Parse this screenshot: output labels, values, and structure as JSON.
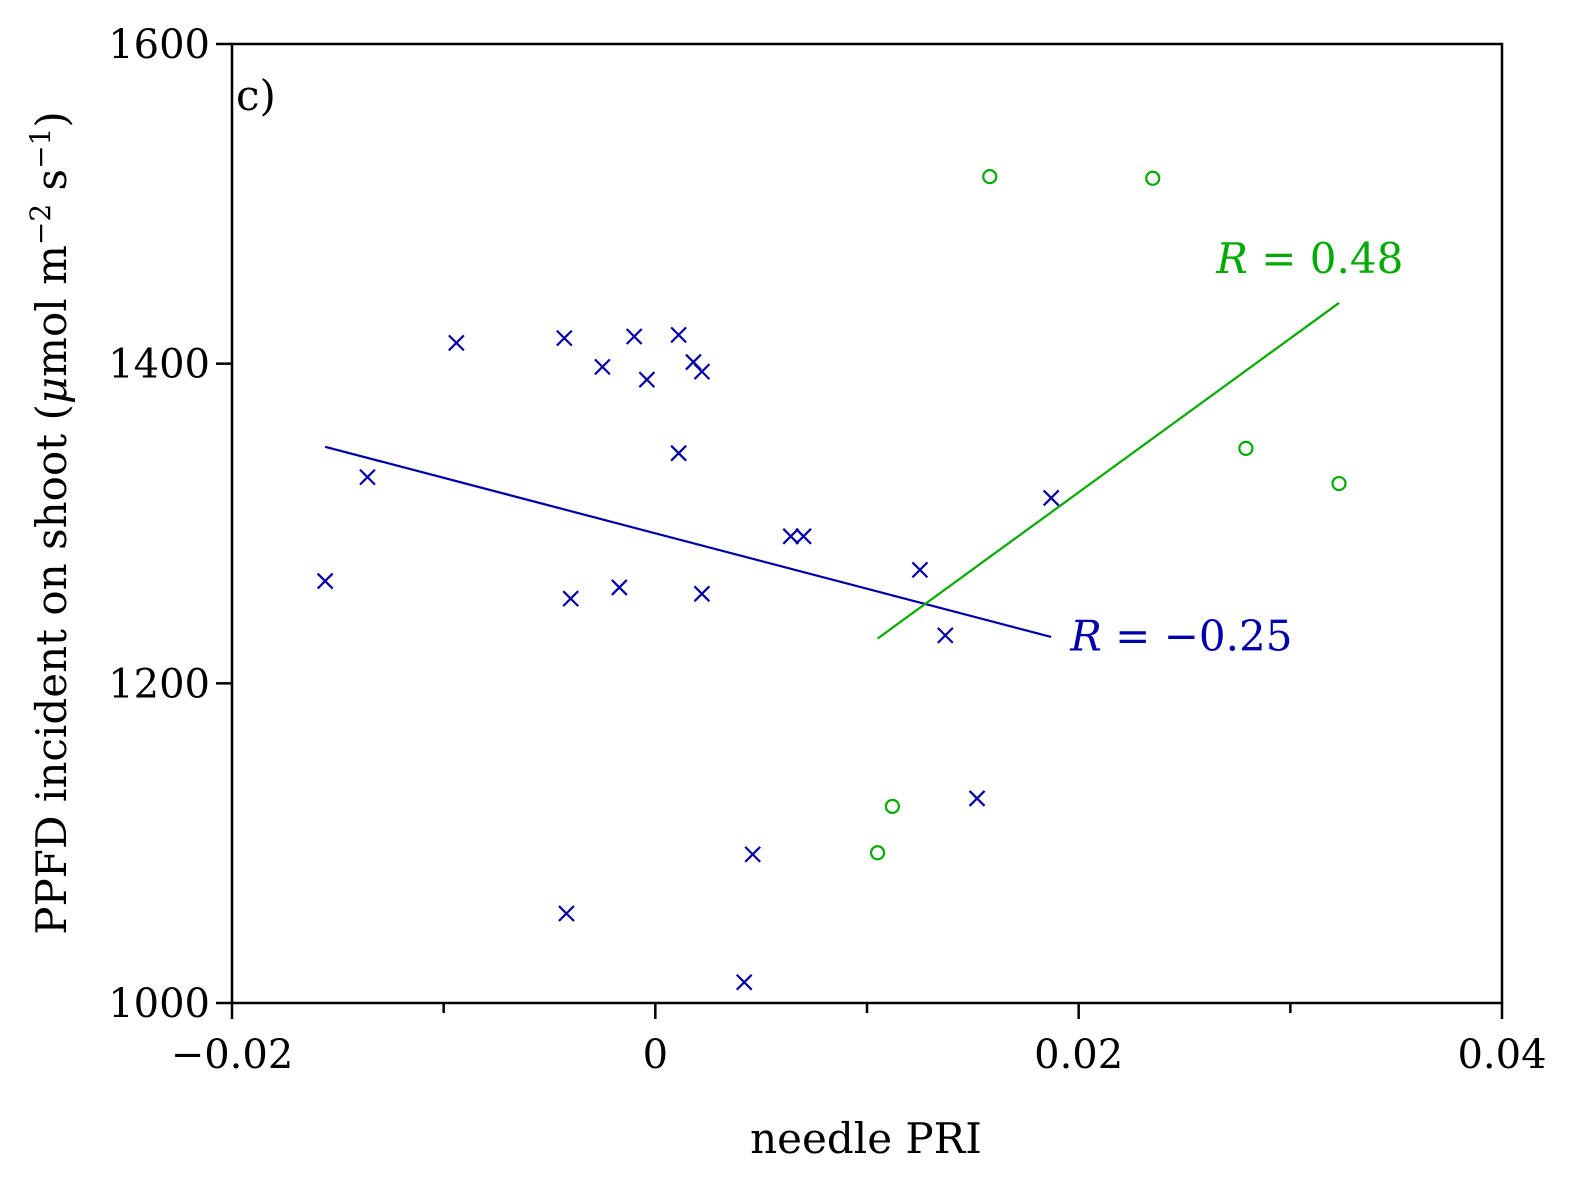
{
  "chart_data": {
    "type": "scatter",
    "panel_label": "c)",
    "xlabel": "needle PRI",
    "ylabel": {
      "main": "PPFD incident on shoot",
      "unit_open": "(",
      "mu": "μ",
      "unit_body": "mol m",
      "exp1": "−2",
      "unit_s": " s",
      "exp2": "−1",
      "unit_close": ")"
    },
    "xlim": [
      -0.02,
      0.04
    ],
    "ylim": [
      1000,
      1600
    ],
    "x_ticks": [
      -0.02,
      0,
      0.02,
      0.04
    ],
    "x_tick_labels": [
      "−0.02",
      "0",
      "0.02",
      "0.04"
    ],
    "x_minor_ticks": [
      -0.01,
      0.01,
      0.03
    ],
    "y_ticks": [
      1000,
      1200,
      1400,
      1600
    ],
    "y_tick_labels": [
      "1000",
      "1200",
      "1400",
      "1600"
    ],
    "series": [
      {
        "name": "blue",
        "marker": "x",
        "color": "#0000aa",
        "points": [
          [
            -0.0156,
            1264
          ],
          [
            -0.0136,
            1329
          ],
          [
            -0.0094,
            1413
          ],
          [
            -0.0043,
            1416
          ],
          [
            -0.004,
            1253
          ],
          [
            -0.0042,
            1056
          ],
          [
            -0.0025,
            1398
          ],
          [
            -0.0017,
            1260
          ],
          [
            -0.001,
            1417
          ],
          [
            -0.0004,
            1390
          ],
          [
            0.0011,
            1418
          ],
          [
            0.0011,
            1344
          ],
          [
            0.0018,
            1401
          ],
          [
            0.0022,
            1395
          ],
          [
            0.0022,
            1256
          ],
          [
            0.0042,
            1013
          ],
          [
            0.0046,
            1093
          ],
          [
            0.0064,
            1292
          ],
          [
            0.007,
            1292
          ],
          [
            0.0125,
            1271
          ],
          [
            0.0137,
            1230
          ],
          [
            0.0152,
            1128
          ],
          [
            0.0187,
            1316
          ]
        ],
        "fit": {
          "x": [
            -0.0156,
            0.0187
          ],
          "y": [
            1348,
            1229
          ]
        },
        "r_label": {
          "symbol": "R",
          "eq": " = ",
          "value": "−0.25",
          "at": [
            0.0196,
            1230
          ]
        }
      },
      {
        "name": "green",
        "marker": "o",
        "color": "#00aa00",
        "points": [
          [
            0.0158,
            1517
          ],
          [
            0.0235,
            1516
          ],
          [
            0.0279,
            1347
          ],
          [
            0.0323,
            1325
          ],
          [
            0.0112,
            1123
          ],
          [
            0.0105,
            1094
          ]
        ],
        "fit": {
          "x": [
            0.0105,
            0.0323
          ],
          "y": [
            1228,
            1438
          ]
        },
        "r_label": {
          "symbol": "R",
          "eq": " = ",
          "value": "0.48",
          "at": [
            0.0265,
            1466
          ]
        }
      }
    ]
  }
}
